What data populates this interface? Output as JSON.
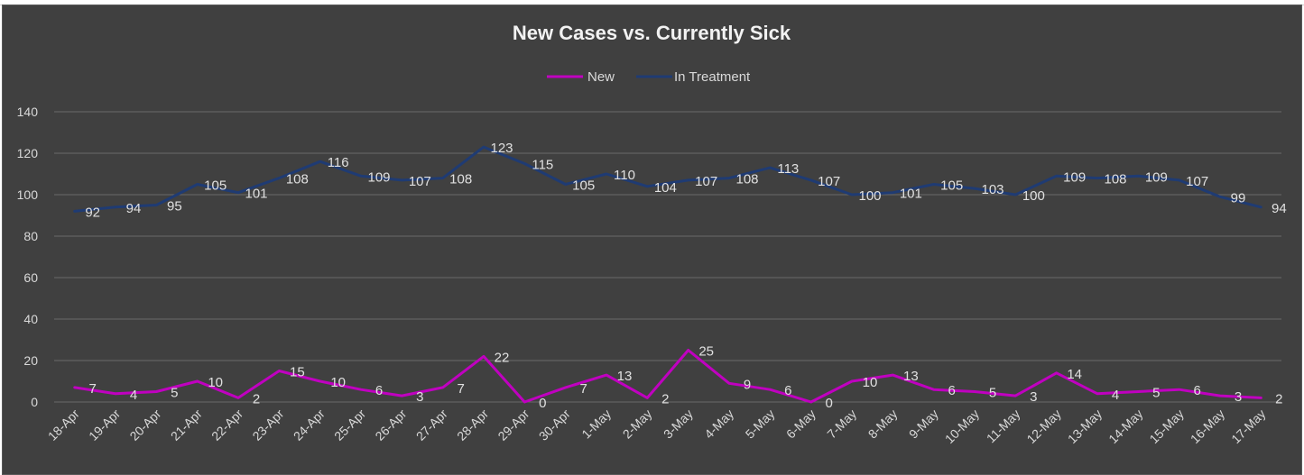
{
  "chart_data": {
    "type": "line",
    "title": "New Cases vs. Currently Sick",
    "xlabel": "",
    "ylabel": "",
    "ylim": [
      0,
      140
    ],
    "yticks": [
      0,
      20,
      40,
      60,
      80,
      100,
      120,
      140
    ],
    "grid": true,
    "legend_position": "top",
    "categories": [
      "18-Apr",
      "19-Apr",
      "20-Apr",
      "21-Apr",
      "22-Apr",
      "23-Apr",
      "24-Apr",
      "25-Apr",
      "26-Apr",
      "27-Apr",
      "28-Apr",
      "29-Apr",
      "30-Apr",
      "1-May",
      "2-May",
      "3-May",
      "4-May",
      "5-May",
      "6-May",
      "7-May",
      "8-May",
      "9-May",
      "10-May",
      "11-May",
      "12-May",
      "13-May",
      "14-May",
      "15-May",
      "16-May",
      "17-May"
    ],
    "series": [
      {
        "name": "New",
        "color": "#c000c0",
        "values": [
          7,
          4,
          5,
          10,
          2,
          15,
          10,
          6,
          3,
          7,
          22,
          0,
          7,
          13,
          2,
          25,
          9,
          6,
          0,
          10,
          13,
          6,
          5,
          3,
          14,
          4,
          5,
          6,
          3,
          2
        ]
      },
      {
        "name": "In Treatment",
        "color": "#1f3b73",
        "values": [
          92,
          94,
          95,
          105,
          101,
          108,
          116,
          109,
          107,
          108,
          123,
          115,
          105,
          110,
          104,
          107,
          108,
          113,
          107,
          100,
          101,
          105,
          103,
          100,
          109,
          108,
          109,
          107,
          99,
          94
        ]
      }
    ]
  }
}
